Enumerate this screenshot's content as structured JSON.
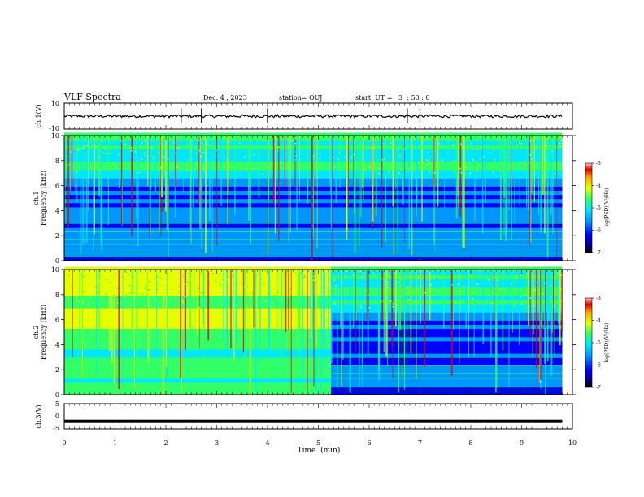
{
  "header": {
    "title": "VLF Spectra",
    "date": "Dec. 4 , 2023",
    "station": "station= OUJ",
    "start": "start  UT =   3  : 50 : 0"
  },
  "colors": {
    "spectrogram_palette": [
      "#00008a",
      "#0000ff",
      "#0096ff",
      "#00e6ff",
      "#33ff66",
      "#e6ff00",
      "#ffa500",
      "#e60000",
      "#ffc8c8"
    ],
    "trace": "#000000"
  },
  "chart_data": [
    {
      "type": "line",
      "name": "ch1-waveform",
      "ylabel": "ch.1(V)",
      "ylim": [
        -10,
        10
      ],
      "yticks": [
        "10",
        "-10"
      ],
      "xlim": [
        0,
        10
      ],
      "grid": false,
      "baseline_value": 0,
      "notable_spikes_min": [
        2.3,
        2.7,
        4.0,
        6.75,
        7.0
      ]
    },
    {
      "type": "heatmap",
      "name": "ch1-spectrogram",
      "ylabel": "ch.1\nFrequency (kHz)",
      "ylim": [
        0,
        10
      ],
      "yticks": [
        "0",
        "2",
        "4",
        "6",
        "8",
        "10"
      ],
      "xlim": [
        0,
        10
      ],
      "data_extent_min": 9.8,
      "colorbar": {
        "label": "log(PSD)(V²/Hz)",
        "range": [
          -7,
          -3
        ],
        "ticks": [
          "-3",
          "-4",
          "-5",
          "-6",
          "-7"
        ]
      }
    },
    {
      "type": "heatmap",
      "name": "ch2-spectrogram",
      "ylabel": "ch.2\nFrequency (kHz)",
      "ylim": [
        0,
        10
      ],
      "yticks": [
        "0",
        "2",
        "4",
        "6",
        "8",
        "10"
      ],
      "xlim": [
        0,
        10
      ],
      "data_extent_min": 9.8,
      "level_change_min": 5.25,
      "colorbar": {
        "label": "log(PSD)(V²/Hz)",
        "range": [
          -7,
          -3
        ],
        "ticks": [
          "-3",
          "-4",
          "-5",
          "-6",
          "-7"
        ]
      }
    },
    {
      "type": "line",
      "name": "ch3-waveform",
      "ylabel": "ch.3(V)",
      "ylim": [
        -5,
        5
      ],
      "yticks": [
        "5",
        "0",
        "-5"
      ],
      "xlim": [
        0,
        10
      ],
      "constant_value": -2,
      "grid": false
    }
  ],
  "xaxis": {
    "label": "Time  (min)",
    "ticks": [
      "0",
      "1",
      "2",
      "3",
      "4",
      "5",
      "6",
      "7",
      "8",
      "9",
      "10"
    ],
    "range": [
      0,
      10
    ]
  }
}
